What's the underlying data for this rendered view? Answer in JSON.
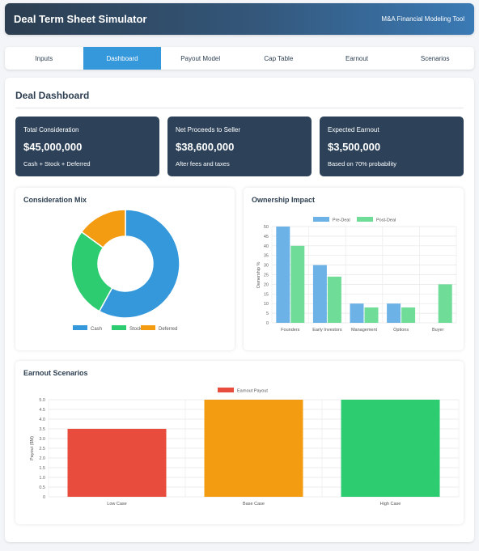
{
  "header": {
    "title": "Deal Term Sheet Simulator",
    "subtitle": "M&A Financial Modeling Tool"
  },
  "tabs": [
    {
      "label": "Inputs",
      "active": false
    },
    {
      "label": "Dashboard",
      "active": true
    },
    {
      "label": "Payout Model",
      "active": false
    },
    {
      "label": "Cap Table",
      "active": false
    },
    {
      "label": "Earnout",
      "active": false
    },
    {
      "label": "Scenarios",
      "active": false
    }
  ],
  "dashboard": {
    "title": "Deal Dashboard",
    "cards": [
      {
        "label": "Total Consideration",
        "value": "$45,000,000",
        "sub": "Cash + Stock + Deferred"
      },
      {
        "label": "Net Proceeds to Seller",
        "value": "$38,600,000",
        "sub": "After fees and taxes"
      },
      {
        "label": "Expected Earnout",
        "value": "$3,500,000",
        "sub": "Based on 70% probability"
      }
    ]
  },
  "colors": {
    "cash": "#3498db",
    "stock": "#2ecc71",
    "deferred": "#f39c12",
    "pre_deal": "#6cb2e6",
    "post_deal": "#6fdc98",
    "low": "#e74c3c",
    "base": "#f39c12",
    "high": "#2ecc71"
  },
  "chart_data": [
    {
      "type": "pie",
      "title": "Consideration Mix",
      "categories": [
        "Cash",
        "Stock",
        "Deferred"
      ],
      "values": [
        58,
        27,
        15
      ],
      "legend": "bottom"
    },
    {
      "type": "bar",
      "title": "Ownership Impact",
      "categories": [
        "Founders",
        "Early Investors",
        "Management",
        "Options",
        "Buyer"
      ],
      "series": [
        {
          "name": "Pre-Deal",
          "values": [
            50,
            30,
            10,
            10,
            0
          ]
        },
        {
          "name": "Post-Deal",
          "values": [
            40,
            24,
            8,
            8,
            20
          ]
        }
      ],
      "ylabel": "Ownership %",
      "ylim": [
        0,
        50
      ],
      "yticks": [
        "0",
        "5",
        "10",
        "15",
        "20",
        "25",
        "30",
        "35",
        "40",
        "45",
        "50"
      ],
      "legend": "top"
    },
    {
      "type": "bar",
      "title": "Earnout Scenarios",
      "categories": [
        "Low Case",
        "Base Case",
        "High Case"
      ],
      "series": [
        {
          "name": "Earnout Payout",
          "values": [
            3.5,
            5.0,
            5.0
          ]
        }
      ],
      "ylabel": "Payout ($M)",
      "ylim": [
        0,
        5
      ],
      "yticks": [
        "0",
        "0.5",
        "1.0",
        "1.5",
        "2.0",
        "2.5",
        "3.0",
        "3.5",
        "4.0",
        "4.5",
        "5.0"
      ],
      "legend": "top"
    }
  ]
}
